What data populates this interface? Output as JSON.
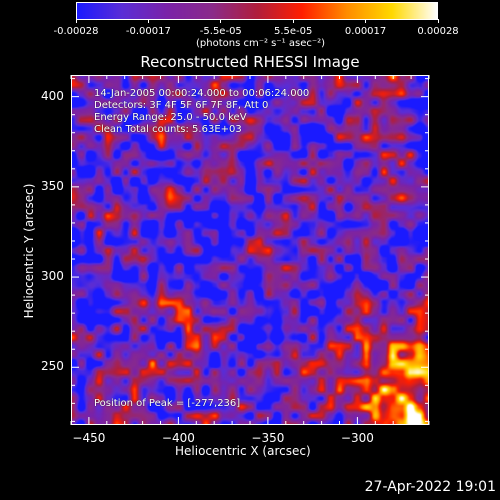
{
  "colorbar": {
    "tick_labels": [
      "-0.00028",
      "-0.00017",
      "-5.5e-05",
      "5.5e-05",
      "0.00017",
      "0.00028"
    ],
    "unit_label": "(photons cm⁻² s⁻¹ asec⁻²)",
    "colors": [
      "#1a1aff",
      "#5a2dd6",
      "#7a22a8",
      "#8a2a8a",
      "#b01e3c",
      "#ff1e00",
      "#ff8c00",
      "#ffd800",
      "#ffffff"
    ]
  },
  "chart_data": {
    "type": "heatmap",
    "title": "Reconstructed RHESSI Image",
    "xlabel": "Heliocentric X (arcsec)",
    "ylabel": "Heliocentric Y (arcsec)",
    "xlim": [
      -460,
      -260
    ],
    "ylim": [
      218,
      412
    ],
    "xticks": [
      -450,
      -400,
      -350,
      -300
    ],
    "yticks": [
      250,
      300,
      350,
      400
    ],
    "value_range": [
      -0.00028,
      0.00028
    ],
    "peak": [
      -277,
      236
    ],
    "annotations": [
      "14-Jan-2005 00:00:24.000 to 00:06:24.000",
      "Detectors: 3F 4F 5F 6F 7F 8F, Att 0",
      "Energy Range: 25.0 - 50.0 keV",
      "Clean     Total counts: 5.63E+03"
    ],
    "peak_label": "Position of Peak = [-277,236]"
  },
  "footer": {
    "date": "27-Apr-2022 19:01"
  }
}
